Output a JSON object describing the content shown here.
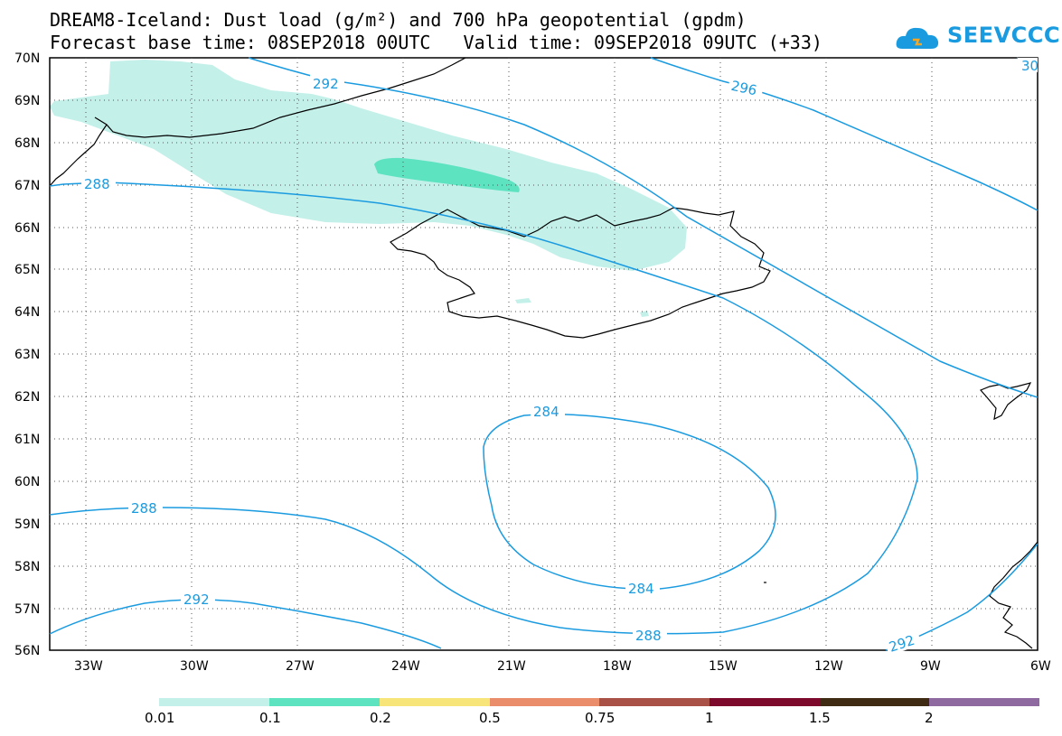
{
  "title": {
    "line1": "DREAM8-Iceland: Dust load (g/m²) and 700 hPa geopotential (gpdm)",
    "line2": "Forecast base time: 08SEP2018 00UTC   Valid time: 09SEP2018 09UTC (+33)"
  },
  "logo": {
    "text": "SEEVCCC",
    "icon": "cloud-icon",
    "color": "#1a9be0"
  },
  "map": {
    "lat_labels": [
      "70N",
      "69N",
      "68N",
      "67N",
      "66N",
      "65N",
      "64N",
      "63N",
      "62N",
      "61N",
      "60N",
      "59N",
      "58N",
      "57N",
      "56N"
    ],
    "lon_labels": [
      "33W",
      "30W",
      "27W",
      "24W",
      "21W",
      "18W",
      "15W",
      "12W",
      "9W",
      "6W"
    ],
    "contour_color": "#1a9be0",
    "contour_labels": [
      "292",
      "296",
      "30",
      "288",
      "284",
      "284",
      "288",
      "288",
      "292",
      "292"
    ],
    "dust_colors": {
      "low": "#c4f0ea",
      "mid": "#5de3c0"
    }
  },
  "colorbar": {
    "colors": [
      "#c4f0ea",
      "#5de3c0",
      "#f7e57a",
      "#ea8d6b",
      "#a95147",
      "#7d0a2c",
      "#3f2a14",
      "#8f6aa0"
    ],
    "labels": [
      "0.01",
      "0.1",
      "0.2",
      "0.5",
      "0.75",
      "1",
      "1.5",
      "2"
    ]
  }
}
